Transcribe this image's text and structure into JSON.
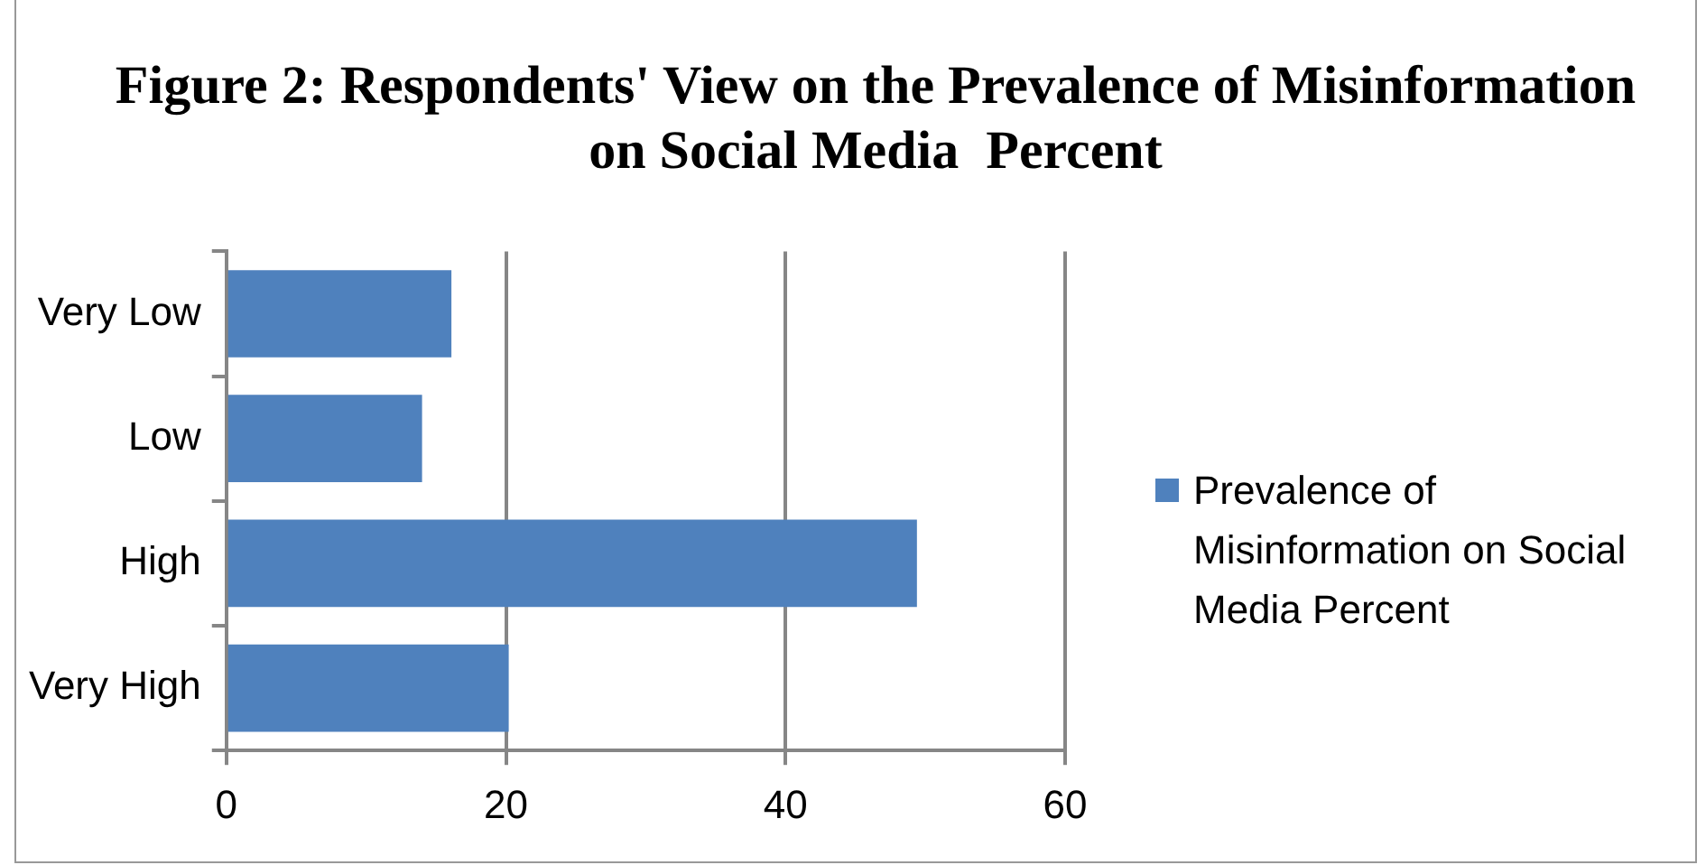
{
  "chart_data": {
    "type": "bar",
    "orientation": "horizontal",
    "title": "Figure 2: Respondents' View on the Prevalence of Misinformation on Social Media  Percent",
    "categories": [
      "Very Low",
      "Low",
      "High",
      "Very High"
    ],
    "series": [
      {
        "name": "Prevalence of Misinformation on Social Media  Percent",
        "color": "#4f81bd",
        "values": [
          16.1,
          14.0,
          49.4,
          20.2
        ]
      }
    ],
    "xlim": [
      0,
      60
    ],
    "xticks": [
      0,
      20,
      40,
      60
    ],
    "grid": "x",
    "legend": "right"
  }
}
